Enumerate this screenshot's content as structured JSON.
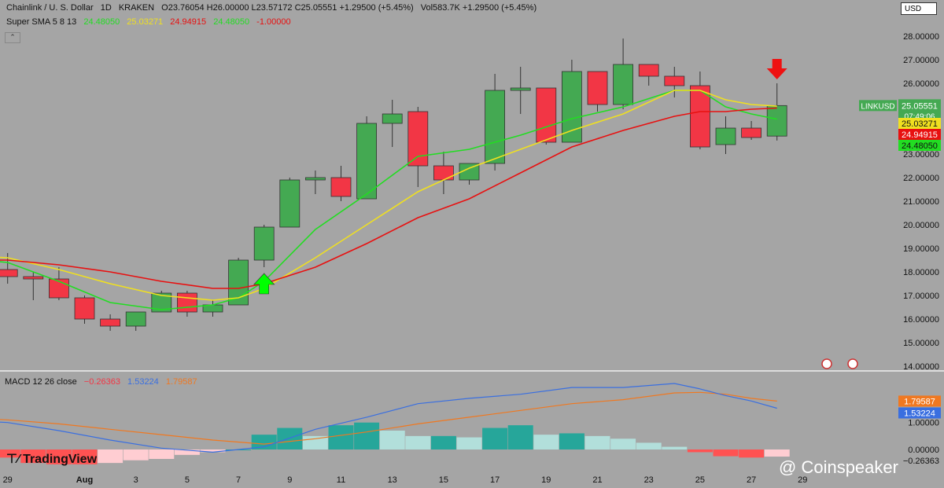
{
  "header": {
    "symbol": "Chainlink / U. S. Dollar",
    "interval": "1D",
    "exchange": "KRAKEN",
    "ohlc": "O23.76054 H26.00000 L23.57172 C25.05551 +1.29500 (+5.45%)",
    "volume": "Vol583.7K +1.29500 (+5.45%)",
    "currency_button": "USD"
  },
  "indicator_sma": {
    "label": "Super SMA 5 8 13",
    "v5": "24.48050",
    "v8": "25.03271",
    "v13": "24.94915",
    "extra": "-1.00000"
  },
  "indicator_macd": {
    "label": "MACD 12 26 close",
    "hist": "−0.26363",
    "macd": "1.53224",
    "signal": "1.79587"
  },
  "branding": {
    "tradingview": "TradingView",
    "coinspeaker": "@ Coinspeaker"
  },
  "colors": {
    "background": "#a5a5a5",
    "up": "#44a952",
    "down": "#f23645",
    "sma5": "#22dd22",
    "sma8": "#f0e020",
    "sma13": "#e81010",
    "macd_line": "#3a6fe0",
    "signal_line": "#f07820",
    "arrow_up": "#00ff00",
    "arrow_down": "#ee1111"
  },
  "chart_data": {
    "type": "candlestick",
    "title": "Chainlink / U. S. Dollar",
    "y_axis": {
      "ylim": [
        14,
        28.2
      ],
      "ticks": [
        "14.00000",
        "15.00000",
        "16.00000",
        "17.00000",
        "18.00000",
        "19.00000",
        "20.00000",
        "21.00000",
        "22.00000",
        "23.00000",
        "24.00000",
        "25.00000",
        "26.00000",
        "27.00000",
        "28.00000"
      ]
    },
    "x_axis": {
      "tick_labels": [
        "27",
        "29",
        "Aug",
        "3",
        "5",
        "7",
        "9",
        "11",
        "13",
        "15",
        "17",
        "19",
        "21",
        "23",
        "25",
        "27",
        "29"
      ],
      "tick_days": [
        -5,
        -3,
        0,
        2,
        4,
        6,
        8,
        10,
        12,
        14,
        16,
        18,
        20,
        22,
        24,
        26,
        28
      ]
    },
    "candles": [
      {
        "d": -5,
        "o": 18.5,
        "h": 19.2,
        "l": 18.2,
        "c": 19.2
      },
      {
        "d": -4,
        "o": 19.2,
        "h": 19.6,
        "l": 18.0,
        "c": 18.1
      },
      {
        "d": -3,
        "o": 18.1,
        "h": 18.8,
        "l": 17.5,
        "c": 17.8
      },
      {
        "d": -2,
        "o": 17.8,
        "h": 18.0,
        "l": 16.8,
        "c": 17.7
      },
      {
        "d": -1,
        "o": 17.7,
        "h": 18.2,
        "l": 16.8,
        "c": 16.9
      },
      {
        "d": 0,
        "o": 16.9,
        "h": 17.0,
        "l": 15.8,
        "c": 16.0
      },
      {
        "d": 1,
        "o": 16.0,
        "h": 16.2,
        "l": 15.5,
        "c": 15.7
      },
      {
        "d": 2,
        "o": 15.7,
        "h": 16.3,
        "l": 15.5,
        "c": 16.3
      },
      {
        "d": 3,
        "o": 16.3,
        "h": 17.2,
        "l": 16.3,
        "c": 17.1
      },
      {
        "d": 4,
        "o": 17.1,
        "h": 17.2,
        "l": 16.1,
        "c": 16.3
      },
      {
        "d": 5,
        "o": 16.3,
        "h": 16.8,
        "l": 16.1,
        "c": 16.6
      },
      {
        "d": 6,
        "o": 16.6,
        "h": 18.6,
        "l": 16.6,
        "c": 18.5
      },
      {
        "d": 7,
        "o": 18.5,
        "h": 20.0,
        "l": 18.2,
        "c": 19.9
      },
      {
        "d": 8,
        "o": 19.9,
        "h": 22.0,
        "l": 19.9,
        "c": 21.9
      },
      {
        "d": 9,
        "o": 21.9,
        "h": 22.3,
        "l": 21.3,
        "c": 22.0
      },
      {
        "d": 10,
        "o": 22.0,
        "h": 22.5,
        "l": 21.0,
        "c": 21.2
      },
      {
        "d": 11,
        "o": 21.1,
        "h": 24.6,
        "l": 21.1,
        "c": 24.3
      },
      {
        "d": 12,
        "o": 24.3,
        "h": 25.3,
        "l": 23.3,
        "c": 24.7
      },
      {
        "d": 13,
        "o": 24.8,
        "h": 25.0,
        "l": 21.6,
        "c": 22.5
      },
      {
        "d": 14,
        "o": 22.5,
        "h": 23.1,
        "l": 21.3,
        "c": 21.9
      },
      {
        "d": 15,
        "o": 21.9,
        "h": 22.5,
        "l": 21.7,
        "c": 22.6
      },
      {
        "d": 16,
        "o": 22.6,
        "h": 26.4,
        "l": 22.3,
        "c": 25.7
      },
      {
        "d": 17,
        "o": 25.7,
        "h": 26.7,
        "l": 24.7,
        "c": 25.8
      },
      {
        "d": 18,
        "o": 25.8,
        "h": 25.8,
        "l": 23.4,
        "c": 23.5
      },
      {
        "d": 19,
        "o": 23.5,
        "h": 27.0,
        "l": 23.5,
        "c": 26.5
      },
      {
        "d": 20,
        "o": 26.5,
        "h": 26.5,
        "l": 24.8,
        "c": 25.1
      },
      {
        "d": 21,
        "o": 25.1,
        "h": 27.9,
        "l": 24.9,
        "c": 26.8
      },
      {
        "d": 22,
        "o": 26.8,
        "h": 26.8,
        "l": 25.9,
        "c": 26.3
      },
      {
        "d": 23,
        "o": 26.3,
        "h": 26.7,
        "l": 25.4,
        "c": 25.9
      },
      {
        "d": 24,
        "o": 25.9,
        "h": 26.5,
        "l": 23.2,
        "c": 23.3
      },
      {
        "d": 25,
        "o": 23.4,
        "h": 24.6,
        "l": 23.0,
        "c": 24.1
      },
      {
        "d": 26,
        "o": 24.1,
        "h": 24.4,
        "l": 23.6,
        "c": 23.7
      },
      {
        "d": 27,
        "o": 23.76054,
        "h": 26.0,
        "l": 23.57172,
        "c": 25.05551
      }
    ],
    "series": [
      {
        "name": "SMA 5",
        "x": [
          -5,
          -3,
          -1,
          1,
          3,
          5,
          6,
          7,
          9,
          11,
          13,
          15,
          17,
          19,
          21,
          23,
          24,
          25,
          26,
          27
        ],
        "y": [
          18.6,
          18.4,
          17.6,
          16.7,
          16.4,
          16.6,
          16.9,
          17.6,
          19.8,
          21.3,
          22.9,
          23.2,
          23.8,
          24.5,
          25.0,
          25.7,
          25.7,
          25.0,
          24.7,
          24.48
        ]
      },
      {
        "name": "SMA 8",
        "x": [
          -5,
          -3,
          -1,
          1,
          3,
          5,
          6,
          7,
          9,
          11,
          13,
          15,
          17,
          19,
          21,
          23,
          24,
          25,
          26,
          27
        ],
        "y": [
          18.7,
          18.6,
          18.1,
          17.5,
          17.0,
          16.8,
          16.9,
          17.3,
          18.6,
          20.0,
          21.4,
          22.4,
          23.2,
          24.0,
          24.7,
          25.7,
          25.7,
          25.3,
          25.1,
          25.03
        ]
      },
      {
        "name": "SMA 13",
        "x": [
          -5,
          -3,
          -1,
          1,
          3,
          5,
          6,
          7,
          9,
          11,
          13,
          15,
          17,
          19,
          21,
          23,
          24,
          25,
          26,
          27
        ],
        "y": [
          18.5,
          18.5,
          18.3,
          18.0,
          17.6,
          17.3,
          17.3,
          17.5,
          18.2,
          19.2,
          20.3,
          21.1,
          22.2,
          23.3,
          24.0,
          24.6,
          24.8,
          24.8,
          24.9,
          24.95
        ]
      }
    ],
    "markers": [
      {
        "type": "down",
        "d": -4,
        "price": 19.8
      },
      {
        "type": "up",
        "d": 7,
        "price": 17.8
      },
      {
        "type": "down",
        "d": 27,
        "price": 26.3
      }
    ],
    "price_labels": [
      {
        "text": "LINKUSD",
        "value": "25.05551",
        "countdown": "07:49:06",
        "y": 25.05551
      },
      {
        "text": "",
        "value": "25.03271",
        "y": 25.03271
      },
      {
        "text": "",
        "value": "24.94915",
        "y": 24.94915
      },
      {
        "text": "",
        "value": "24.48050",
        "y": 24.4805
      }
    ],
    "macd": {
      "ylim": [
        -0.7,
        2.8
      ],
      "ticks": [
        "0.00000",
        "1.00000"
      ],
      "x": [
        -5,
        -3,
        -1,
        1,
        3,
        5,
        7,
        9,
        11,
        13,
        15,
        17,
        19,
        21,
        23,
        24,
        25,
        26,
        27
      ],
      "macd": [
        1.1,
        1.0,
        0.7,
        0.35,
        0.05,
        -0.1,
        0.1,
        0.75,
        1.2,
        1.7,
        1.9,
        2.05,
        2.3,
        2.3,
        2.45,
        2.25,
        2.0,
        1.8,
        1.53224
      ],
      "signal": [
        1.2,
        1.1,
        0.95,
        0.75,
        0.55,
        0.35,
        0.2,
        0.4,
        0.65,
        0.95,
        1.2,
        1.45,
        1.7,
        1.85,
        2.1,
        2.12,
        2.05,
        1.9,
        1.79587
      ],
      "hist": [
        -0.1,
        -0.2,
        -0.3,
        -0.5,
        -0.55,
        -0.55,
        -0.5,
        -0.4,
        -0.35,
        -0.2,
        -0.1,
        0.0,
        0.55,
        0.8,
        0.5,
        0.9,
        1.0,
        0.7,
        0.5,
        0.5,
        0.45,
        0.8,
        0.9,
        0.55,
        0.6,
        0.5,
        0.4,
        0.25,
        0.1,
        -0.1,
        -0.25,
        -0.3,
        -0.26363
      ]
    }
  }
}
